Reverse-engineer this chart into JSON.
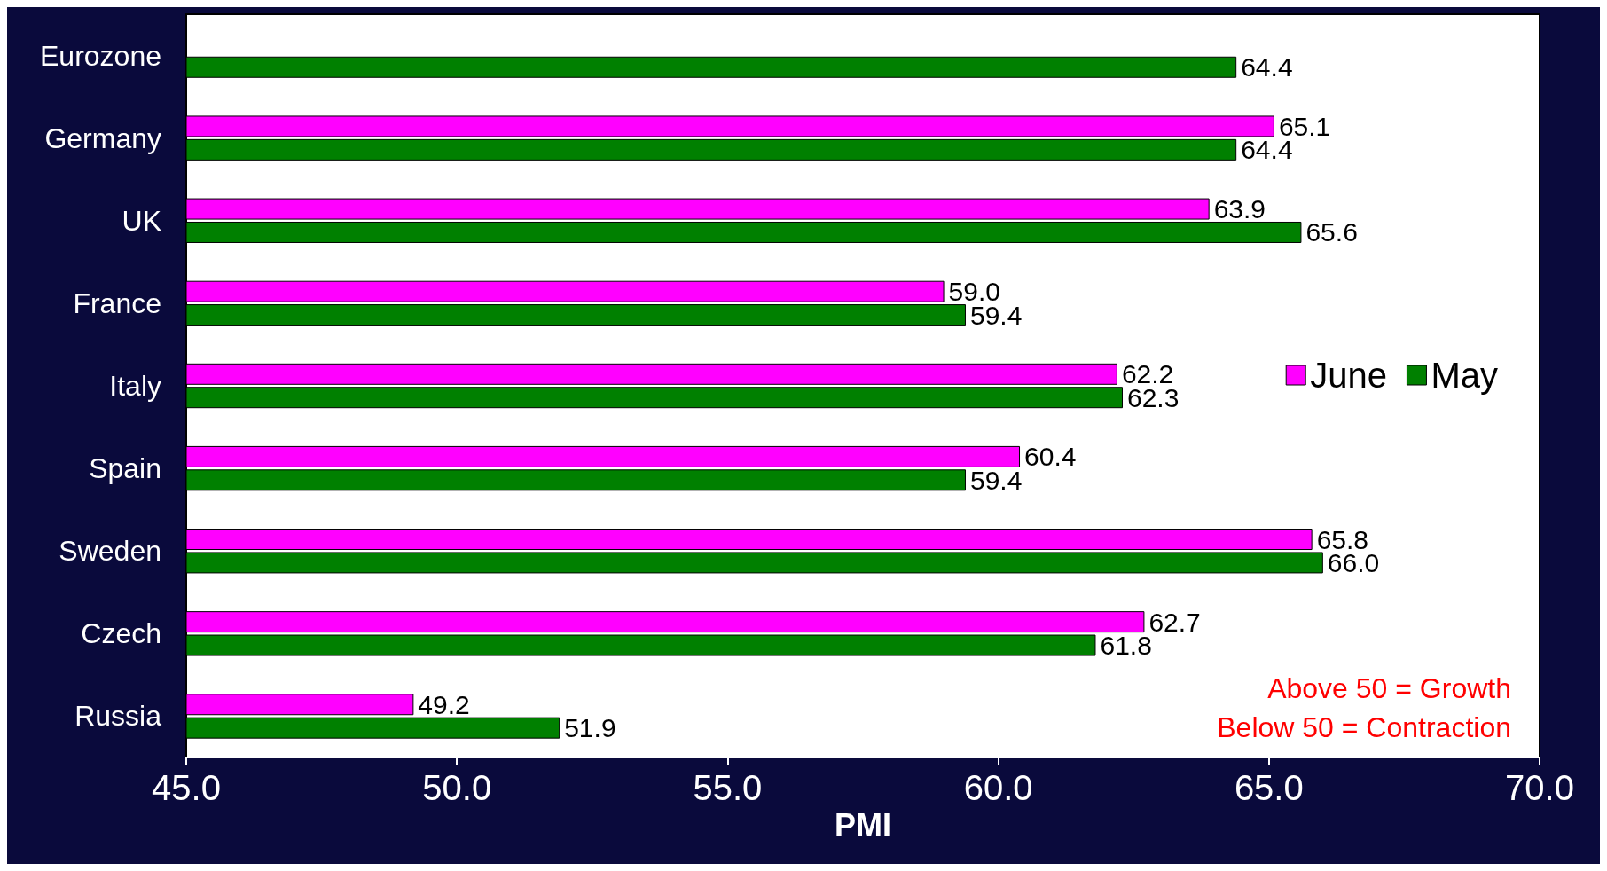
{
  "chart_data": {
    "type": "bar",
    "orientation": "horizontal",
    "xlabel": "PMI",
    "categories": [
      "Eurozone",
      "Germany",
      "UK",
      "France",
      "Italy",
      "Spain",
      "Sweden",
      "Czech",
      "Russia"
    ],
    "series": [
      {
        "name": "June",
        "color": "#ff00ff",
        "values": [
          null,
          65.1,
          63.9,
          59.0,
          62.2,
          60.4,
          65.8,
          62.7,
          49.2
        ],
        "value_labels": [
          null,
          "65.1",
          "63.9",
          "59.0",
          "62.2",
          "60.4",
          "65.8",
          "62.7",
          "49.2"
        ]
      },
      {
        "name": "May",
        "color": "#008000",
        "values": [
          64.4,
          64.4,
          65.6,
          59.4,
          62.3,
          59.4,
          66.0,
          61.8,
          51.9
        ],
        "value_labels": [
          "64.4",
          "64.4",
          "65.6",
          "59.4",
          "62.3",
          "59.4",
          "66.0",
          "61.8",
          "51.9"
        ]
      }
    ],
    "xlim": [
      45,
      70
    ],
    "xticks": [
      {
        "value": 45,
        "label": "45.0"
      },
      {
        "value": 50,
        "label": "50.0"
      },
      {
        "value": 55,
        "label": "55.0"
      },
      {
        "value": 60,
        "label": "60.0"
      },
      {
        "value": 65,
        "label": "65.0"
      },
      {
        "value": 70,
        "label": "70.0"
      }
    ],
    "annotations": [
      "Above 50 = Growth",
      "Below 50 = Contraction"
    ],
    "legend": "right",
    "grid": false
  }
}
